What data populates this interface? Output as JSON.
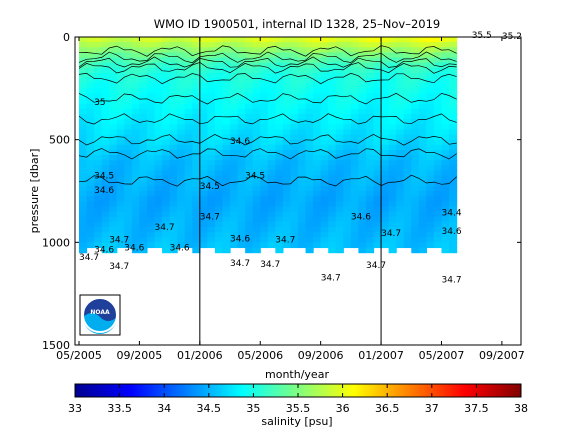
{
  "title": "WMO ID 1900501, internal ID 1328, 25–Nov–2019",
  "chart_data": {
    "type": "heatmap",
    "title": "WMO ID 1900501, internal ID 1328, 25–Nov–2019",
    "xlabel": "month/year",
    "ylabel": "pressure [dbar]",
    "colorbar_label": "salinity [psu]",
    "x_tick_labels": [
      "05/2005",
      "09/2005",
      "01/2006",
      "05/2006",
      "09/2006",
      "01/2007",
      "05/2007",
      "09/2007"
    ],
    "x_range_months": [
      "05/2005",
      "10/2007"
    ],
    "y_ticks": [
      0,
      500,
      1000,
      1500
    ],
    "ylim": [
      1500,
      0
    ],
    "y_reversed": true,
    "colorbar_ticks": [
      33,
      33.5,
      34,
      34.5,
      35,
      35.5,
      36,
      36.5,
      37,
      37.5,
      38
    ],
    "clim": [
      33,
      38
    ],
    "colormap": "jet",
    "year_markers": [
      "01/2006",
      "01/2007"
    ],
    "data_range_months": [
      "05/2005",
      "06/2007"
    ],
    "max_profile_depth": 1050,
    "salinity_profile": {
      "pressure": [
        0,
        50,
        100,
        150,
        200,
        300,
        400,
        500,
        600,
        800,
        1000,
        1050
      ],
      "salinity": [
        35.9,
        35.6,
        35.3,
        35.1,
        35.0,
        34.9,
        34.8,
        34.7,
        34.55,
        34.45,
        34.55,
        34.6
      ]
    },
    "contour_labels": [
      {
        "text": "35.5",
        "x_month": "07/2007",
        "p": 5
      },
      {
        "text": "35.2",
        "x_month": "09/2007",
        "p": 10
      },
      {
        "text": "35",
        "x_month": "06/2005",
        "p": 330
      },
      {
        "text": "34.6",
        "x_month": "03/2006",
        "p": 520
      },
      {
        "text": "34.5",
        "x_month": "06/2005",
        "p": 690
      },
      {
        "text": "34.6",
        "x_month": "06/2005",
        "p": 760
      },
      {
        "text": "34.5",
        "x_month": "01/2006",
        "p": 740
      },
      {
        "text": "34.5",
        "x_month": "04/2006",
        "p": 690
      },
      {
        "text": "34.7",
        "x_month": "01/2006",
        "p": 890
      },
      {
        "text": "34.7",
        "x_month": "10/2005",
        "p": 940
      },
      {
        "text": "34.6",
        "x_month": "11/2006",
        "p": 890
      },
      {
        "text": "34.4",
        "x_month": "05/2007",
        "p": 870
      },
      {
        "text": "34.7",
        "x_month": "07/2005",
        "p": 1000
      },
      {
        "text": "34.6",
        "x_month": "06/2005",
        "p": 1050
      },
      {
        "text": "34.6",
        "x_month": "08/2005",
        "p": 1040
      },
      {
        "text": "34.6",
        "x_month": "11/2005",
        "p": 1040
      },
      {
        "text": "34.6",
        "x_month": "03/2006",
        "p": 995
      },
      {
        "text": "34.7",
        "x_month": "06/2006",
        "p": 1000
      },
      {
        "text": "34.7",
        "x_month": "01/2007",
        "p": 970
      },
      {
        "text": "34.6",
        "x_month": "05/2007",
        "p": 960
      },
      {
        "text": "34.7",
        "x_month": "05/2005",
        "p": 1085
      },
      {
        "text": "34.7",
        "x_month": "07/2005",
        "p": 1130
      },
      {
        "text": "34.7",
        "x_month": "03/2006",
        "p": 1115
      },
      {
        "text": "34.7",
        "x_month": "05/2006",
        "p": 1120
      },
      {
        "text": "34.7",
        "x_month": "12/2006",
        "p": 1125
      },
      {
        "text": "34.7",
        "x_month": "09/2006",
        "p": 1185
      },
      {
        "text": "34.7",
        "x_month": "05/2007",
        "p": 1195
      }
    ]
  },
  "logo": {
    "text": "NOAA"
  }
}
